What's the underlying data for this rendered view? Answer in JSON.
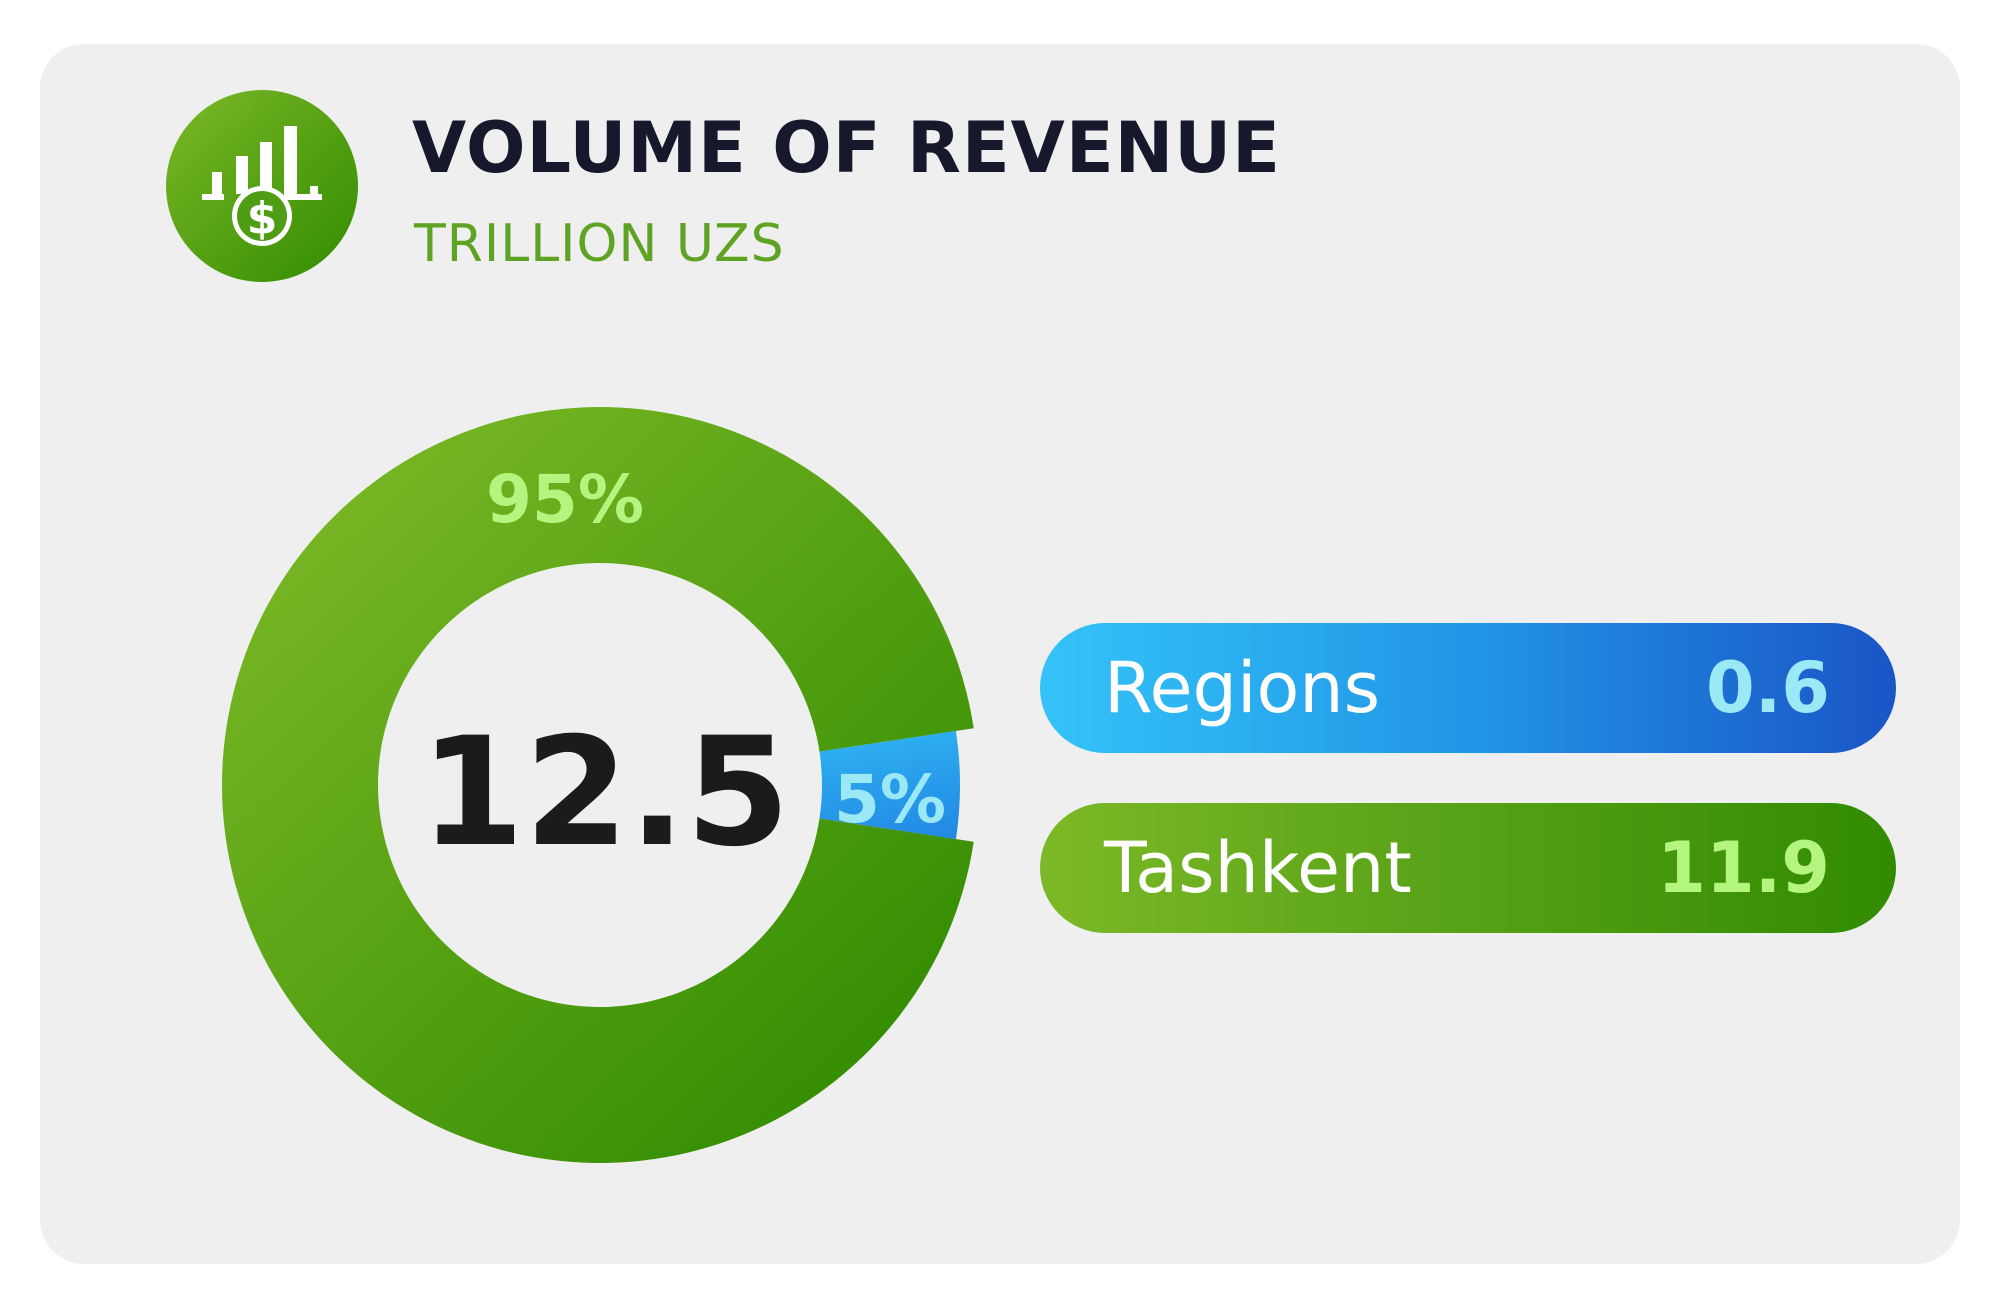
{
  "header": {
    "title": "VOLUME OF REVENUE",
    "subtitle": "TRILLION UZS",
    "icon": "revenue-growth-icon"
  },
  "colors": {
    "background": "#efefef",
    "title": "#16192b",
    "subtitle": "#5fa324",
    "green_start": "#7cb927",
    "green_end": "#318b00",
    "blue_start": "#34c3f8",
    "blue_end": "#1a55c6",
    "green_label": "#b3f57e",
    "blue_label": "#9be8f6",
    "total_text": "#1b1b1b"
  },
  "chart_data": {
    "type": "pie",
    "title": "VOLUME OF REVENUE",
    "subtitle": "TRILLION UZS",
    "total": "12.5",
    "slices": [
      {
        "name": "Tashkent",
        "value": 11.9,
        "value_label": "11.9",
        "percent": 95,
        "percent_label": "95%"
      },
      {
        "name": "Regions",
        "value": 0.6,
        "value_label": "0.6",
        "percent": 5,
        "percent_label": "5%"
      }
    ]
  },
  "legend": [
    {
      "label": "Regions",
      "value": "0.6"
    },
    {
      "label": "Tashkent",
      "value": "11.9"
    }
  ]
}
